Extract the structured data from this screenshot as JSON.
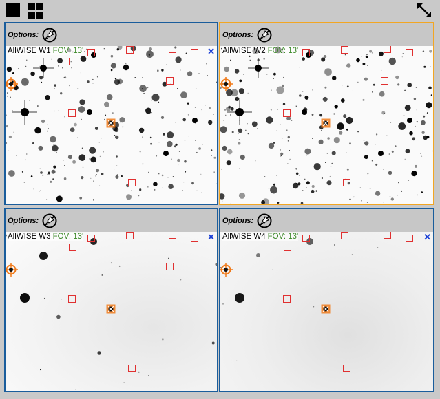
{
  "toolbar": {
    "single_view_icon": "single-view-icon",
    "grid_view_icon": "grid-view-icon",
    "expand_icon": "expand-icon"
  },
  "panels": [
    {
      "id": "w1",
      "options_label": "Options:",
      "band": "AllWISE W1",
      "fov": "FOV: 13'",
      "active": false,
      "has_close": true
    },
    {
      "id": "w2",
      "options_label": "Options:",
      "band": "AllWISE W2",
      "fov": "FOV: 13'",
      "active": true,
      "has_close": false
    },
    {
      "id": "w3",
      "options_label": "Options:",
      "band": "AllWISE W3",
      "fov": "FOV: 13'",
      "active": false,
      "has_close": true
    },
    {
      "id": "w4",
      "options_label": "Options:",
      "band": "AllWISE W4",
      "fov": "FOV: 13'",
      "active": false,
      "has_close": true
    }
  ],
  "close_glyph": "✕",
  "colors": {
    "panel_border": "#1a5d9c",
    "active_border": "#f2a623",
    "marker_red": "#e03030",
    "target_orange": "#f07a1a",
    "fov_green": "#3d8a2a",
    "close_blue": "#1a3fd6"
  }
}
